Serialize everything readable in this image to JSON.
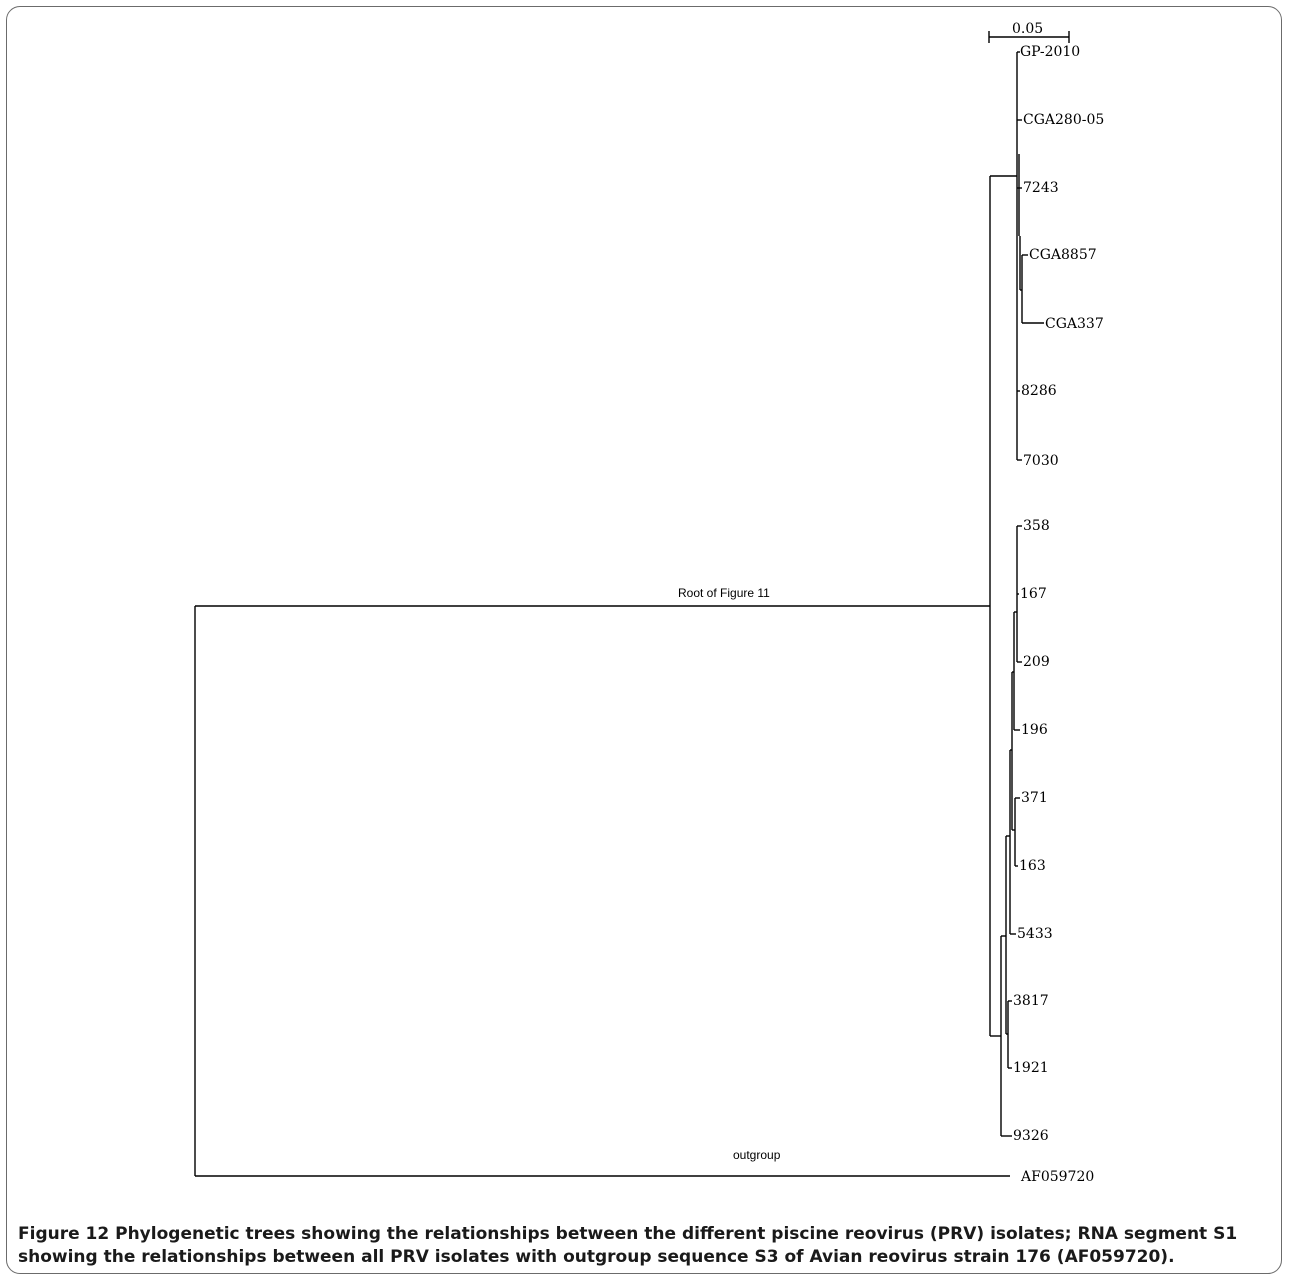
{
  "tree": {
    "scale_bar_label": "0.05",
    "scale_bar_value": 0.05,
    "root_label": "Root of Figure 11",
    "outgroup_label": "outgroup",
    "leaves": [
      "GP-2010",
      "CGA280-05",
      "7243",
      "CGA8857",
      "CGA337",
      "8286",
      "7030",
      "358",
      "167",
      "209",
      "196",
      "371",
      "163",
      "5433",
      "3817",
      "1921",
      "9326",
      "AF059720"
    ]
  },
  "caption": {
    "label": "Figure 12",
    "text": "Phylogenetic trees showing the relationships between the different piscine reovirus (PRV) isolates; RNA segment S1 showing the relationships between all PRV isolates with outgroup sequence S3 of Avian reovirus strain 176 (AF059720)."
  }
}
